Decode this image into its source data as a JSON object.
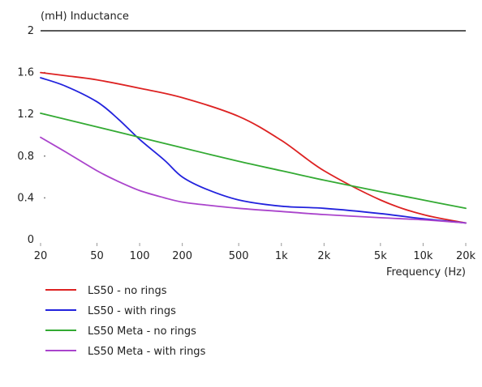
{
  "chart_data": {
    "type": "line",
    "title": "",
    "ylabel": "(mH) Inductance",
    "xlabel": "Frequency (Hz)",
    "x_scale": "log",
    "xlim": [
      20,
      20000
    ],
    "ylim": [
      0,
      2
    ],
    "x_ticks": [
      {
        "value": 20,
        "label": "20"
      },
      {
        "value": 50,
        "label": "50"
      },
      {
        "value": 100,
        "label": "100"
      },
      {
        "value": 200,
        "label": "200"
      },
      {
        "value": 500,
        "label": "500"
      },
      {
        "value": 1000,
        "label": "1k"
      },
      {
        "value": 2000,
        "label": "2k"
      },
      {
        "value": 5000,
        "label": "5k"
      },
      {
        "value": 10000,
        "label": "10k"
      },
      {
        "value": 20000,
        "label": "20k"
      }
    ],
    "y_ticks": [
      {
        "value": 0,
        "label": "0"
      },
      {
        "value": 0.4,
        "label": "0.4"
      },
      {
        "value": 0.8,
        "label": "0.8"
      },
      {
        "value": 1.2,
        "label": "1.2"
      },
      {
        "value": 1.6,
        "label": "1.6"
      },
      {
        "value": 2,
        "label": "2"
      }
    ],
    "grid": false,
    "legend_position": "bottom-left",
    "series": [
      {
        "name": "LS50 - no rings",
        "color": "#dd2222",
        "x": [
          20,
          30,
          50,
          100,
          200,
          500,
          1000,
          2000,
          5000,
          10000,
          20000
        ],
        "y": [
          1.6,
          1.57,
          1.53,
          1.45,
          1.36,
          1.18,
          0.95,
          0.66,
          0.38,
          0.24,
          0.16
        ]
      },
      {
        "name": "LS50 - with rings",
        "color": "#2222dd",
        "x": [
          20,
          30,
          50,
          70,
          100,
          150,
          200,
          300,
          500,
          1000,
          2000,
          5000,
          10000,
          20000
        ],
        "y": [
          1.55,
          1.47,
          1.32,
          1.16,
          0.96,
          0.76,
          0.6,
          0.48,
          0.38,
          0.32,
          0.3,
          0.25,
          0.2,
          0.16
        ]
      },
      {
        "name": "LS50 Meta - no rings",
        "color": "#33aa33",
        "x": [
          20,
          50,
          100,
          200,
          500,
          1000,
          2000,
          5000,
          10000,
          20000
        ],
        "y": [
          1.21,
          1.08,
          0.98,
          0.88,
          0.75,
          0.66,
          0.57,
          0.46,
          0.38,
          0.3
        ]
      },
      {
        "name": "LS50 Meta - with rings",
        "color": "#aa44cc",
        "x": [
          20,
          30,
          50,
          70,
          100,
          150,
          200,
          300,
          500,
          1000,
          2000,
          5000,
          10000,
          20000
        ],
        "y": [
          0.98,
          0.84,
          0.66,
          0.56,
          0.47,
          0.4,
          0.36,
          0.33,
          0.3,
          0.27,
          0.24,
          0.21,
          0.19,
          0.16
        ]
      }
    ]
  }
}
